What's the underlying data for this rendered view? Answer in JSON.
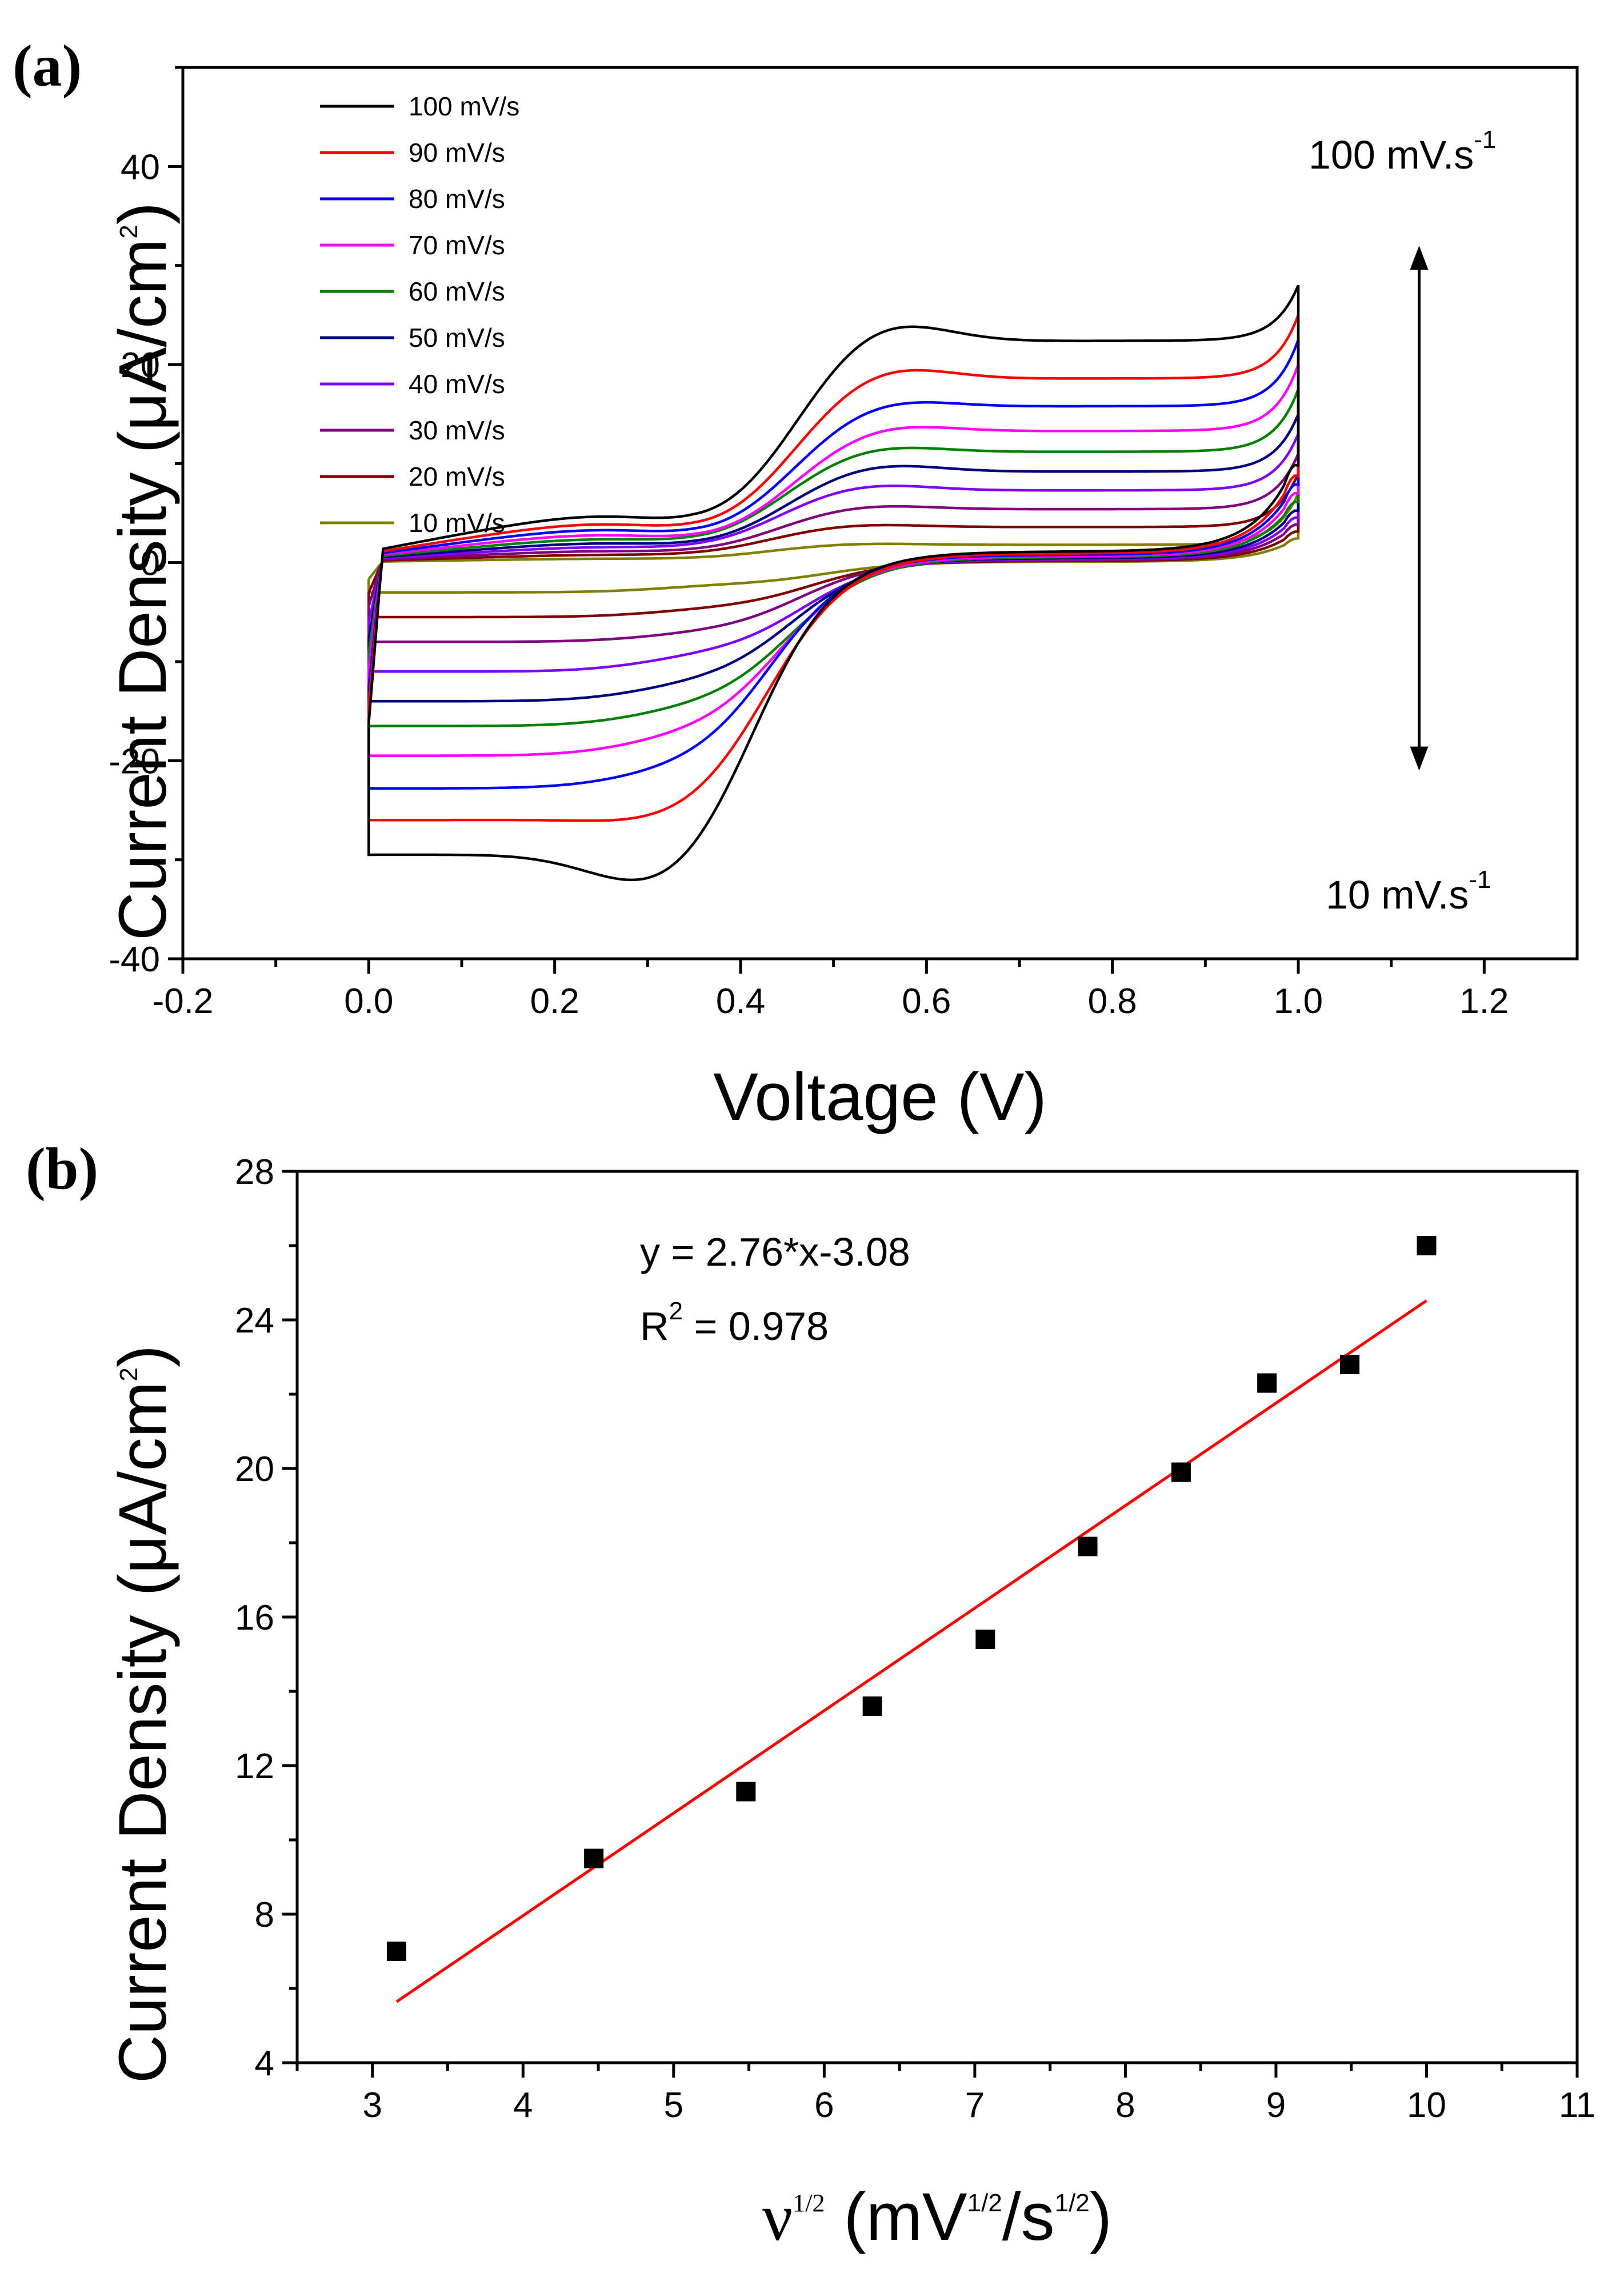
{
  "chart_data": [
    {
      "panel": "(a)",
      "type": "line",
      "title": "",
      "xlabel": "Voltage (V)",
      "ylabel": "Current Density (μA/cm",
      "ylabel_sup": "2",
      "ylabel_close": ")",
      "xlim": [
        -0.2,
        1.3
      ],
      "ylim": [
        -40,
        50
      ],
      "xticks": [
        -0.2,
        0.0,
        0.2,
        0.4,
        0.6,
        0.8,
        1.0,
        1.2
      ],
      "xtick_labels": [
        "-0.2",
        "0.0",
        "0.2",
        "0.4",
        "0.6",
        "0.8",
        "1.0",
        "1.2"
      ],
      "yticks": [
        -40,
        -20,
        0,
        20,
        40
      ],
      "ytick_labels": [
        "-40",
        "-20",
        "0",
        "20",
        "40"
      ],
      "legend_position": "top-left",
      "annotation_top": "100 mV.s",
      "annotation_top_sup": "-1",
      "annotation_bottom": "10 mV.s",
      "annotation_bottom_sup": "-1",
      "arrow": {
        "x": 1.13,
        "y_from": 32,
        "y_to": -21
      },
      "series": [
        {
          "name": "100 mV/s",
          "color": "#000000",
          "anodic_peak": [
            0.55,
            25.2
          ],
          "cathodic_peak": [
            0.32,
            -34
          ],
          "anodic_plateau": 22.4,
          "cathodic_start": -29.5,
          "end_current": 28
        },
        {
          "name": "90 mV/s",
          "color": "#ff0000",
          "anodic_peak": [
            0.55,
            20.5
          ],
          "cathodic_peak": [
            0.33,
            -27
          ],
          "anodic_plateau": 18.6,
          "cathodic_start": -26,
          "end_current": 25
        },
        {
          "name": "80 mV/s",
          "color": "#0000ff",
          "anodic_peak": [
            0.55,
            17.0
          ],
          "cathodic_peak": [
            0.33,
            -22
          ],
          "anodic_plateau": 15.8,
          "cathodic_start": -22.8,
          "end_current": 22.5
        },
        {
          "name": "70 mV/s",
          "color": "#ff00ff",
          "anodic_peak": [
            0.55,
            14.4
          ],
          "cathodic_peak": [
            0.34,
            -18.5
          ],
          "anodic_plateau": 13.3,
          "cathodic_start": -19.5,
          "end_current": 20
        },
        {
          "name": "60 mV/s",
          "color": "#008000",
          "anodic_peak": [
            0.54,
            12.2
          ],
          "cathodic_peak": [
            0.35,
            -15.5
          ],
          "anodic_plateau": 11.2,
          "cathodic_start": -16.5,
          "end_current": 17.5
        },
        {
          "name": "50 mV/s",
          "color": "#000080",
          "anodic_peak": [
            0.54,
            10.3
          ],
          "cathodic_peak": [
            0.35,
            -13
          ],
          "anodic_plateau": 9.2,
          "cathodic_start": -14,
          "end_current": 15
        },
        {
          "name": "40 mV/s",
          "color": "#8000ff",
          "anodic_peak": [
            0.53,
            8.2
          ],
          "cathodic_peak": [
            0.36,
            -10
          ],
          "anodic_plateau": 7.3,
          "cathodic_start": -11,
          "end_current": 13
        },
        {
          "name": "30 mV/s",
          "color": "#800080",
          "anodic_peak": [
            0.53,
            6.0
          ],
          "cathodic_peak": [
            0.36,
            -7.5
          ],
          "anodic_plateau": 5.4,
          "cathodic_start": -8,
          "end_current": 11
        },
        {
          "name": "20 mV/s",
          "color": "#800000",
          "anodic_peak": [
            0.52,
            4.0
          ],
          "cathodic_peak": [
            0.37,
            -5
          ],
          "anodic_plateau": 3.6,
          "cathodic_start": -5.5,
          "end_current": 9
        },
        {
          "name": "10 mV/s",
          "color": "#808000",
          "anodic_peak": [
            0.52,
            2.0
          ],
          "cathodic_peak": [
            0.38,
            -2.5
          ],
          "anodic_plateau": 1.8,
          "cathodic_start": -3,
          "end_current": 7
        }
      ]
    },
    {
      "panel": "(b)",
      "type": "scatter",
      "title": "",
      "xlabel": "ν",
      "xlabel_sup": "1/2",
      "xlabel_rest": " (mV",
      "xlabel_sup2": "1/2",
      "xlabel_rest2": "/s",
      "xlabel_sup3": "1/2",
      "xlabel_close": ")",
      "ylabel": "Current Density (μA/cm",
      "ylabel_sup": "2",
      "ylabel_close": ")",
      "xlim": [
        2.5,
        11
      ],
      "ylim": [
        4,
        28
      ],
      "xticks": [
        3,
        4,
        5,
        6,
        7,
        8,
        9,
        10,
        11
      ],
      "xtick_labels": [
        "3",
        "4",
        "5",
        "6",
        "7",
        "8",
        "9",
        "10",
        "11"
      ],
      "yticks": [
        4,
        8,
        12,
        16,
        20,
        24,
        28
      ],
      "ytick_labels": [
        "4",
        "8",
        "12",
        "16",
        "20",
        "24",
        "28"
      ],
      "x": [
        3.16,
        4.47,
        5.48,
        6.32,
        7.07,
        7.75,
        8.37,
        8.94,
        9.49,
        10.0
      ],
      "y": [
        7.0,
        9.5,
        11.3,
        13.6,
        15.4,
        17.9,
        19.9,
        22.3,
        22.8,
        26.0
      ],
      "marker_color": "#000000",
      "fit": {
        "slope": 2.76,
        "intercept": -3.08,
        "x_range": [
          3.16,
          10.0
        ],
        "color": "#ff0000"
      },
      "equation": "y = 2.76*x-3.08",
      "r2_label": "R",
      "r2_sup": "2",
      "r2_value": " = 0.978"
    }
  ]
}
